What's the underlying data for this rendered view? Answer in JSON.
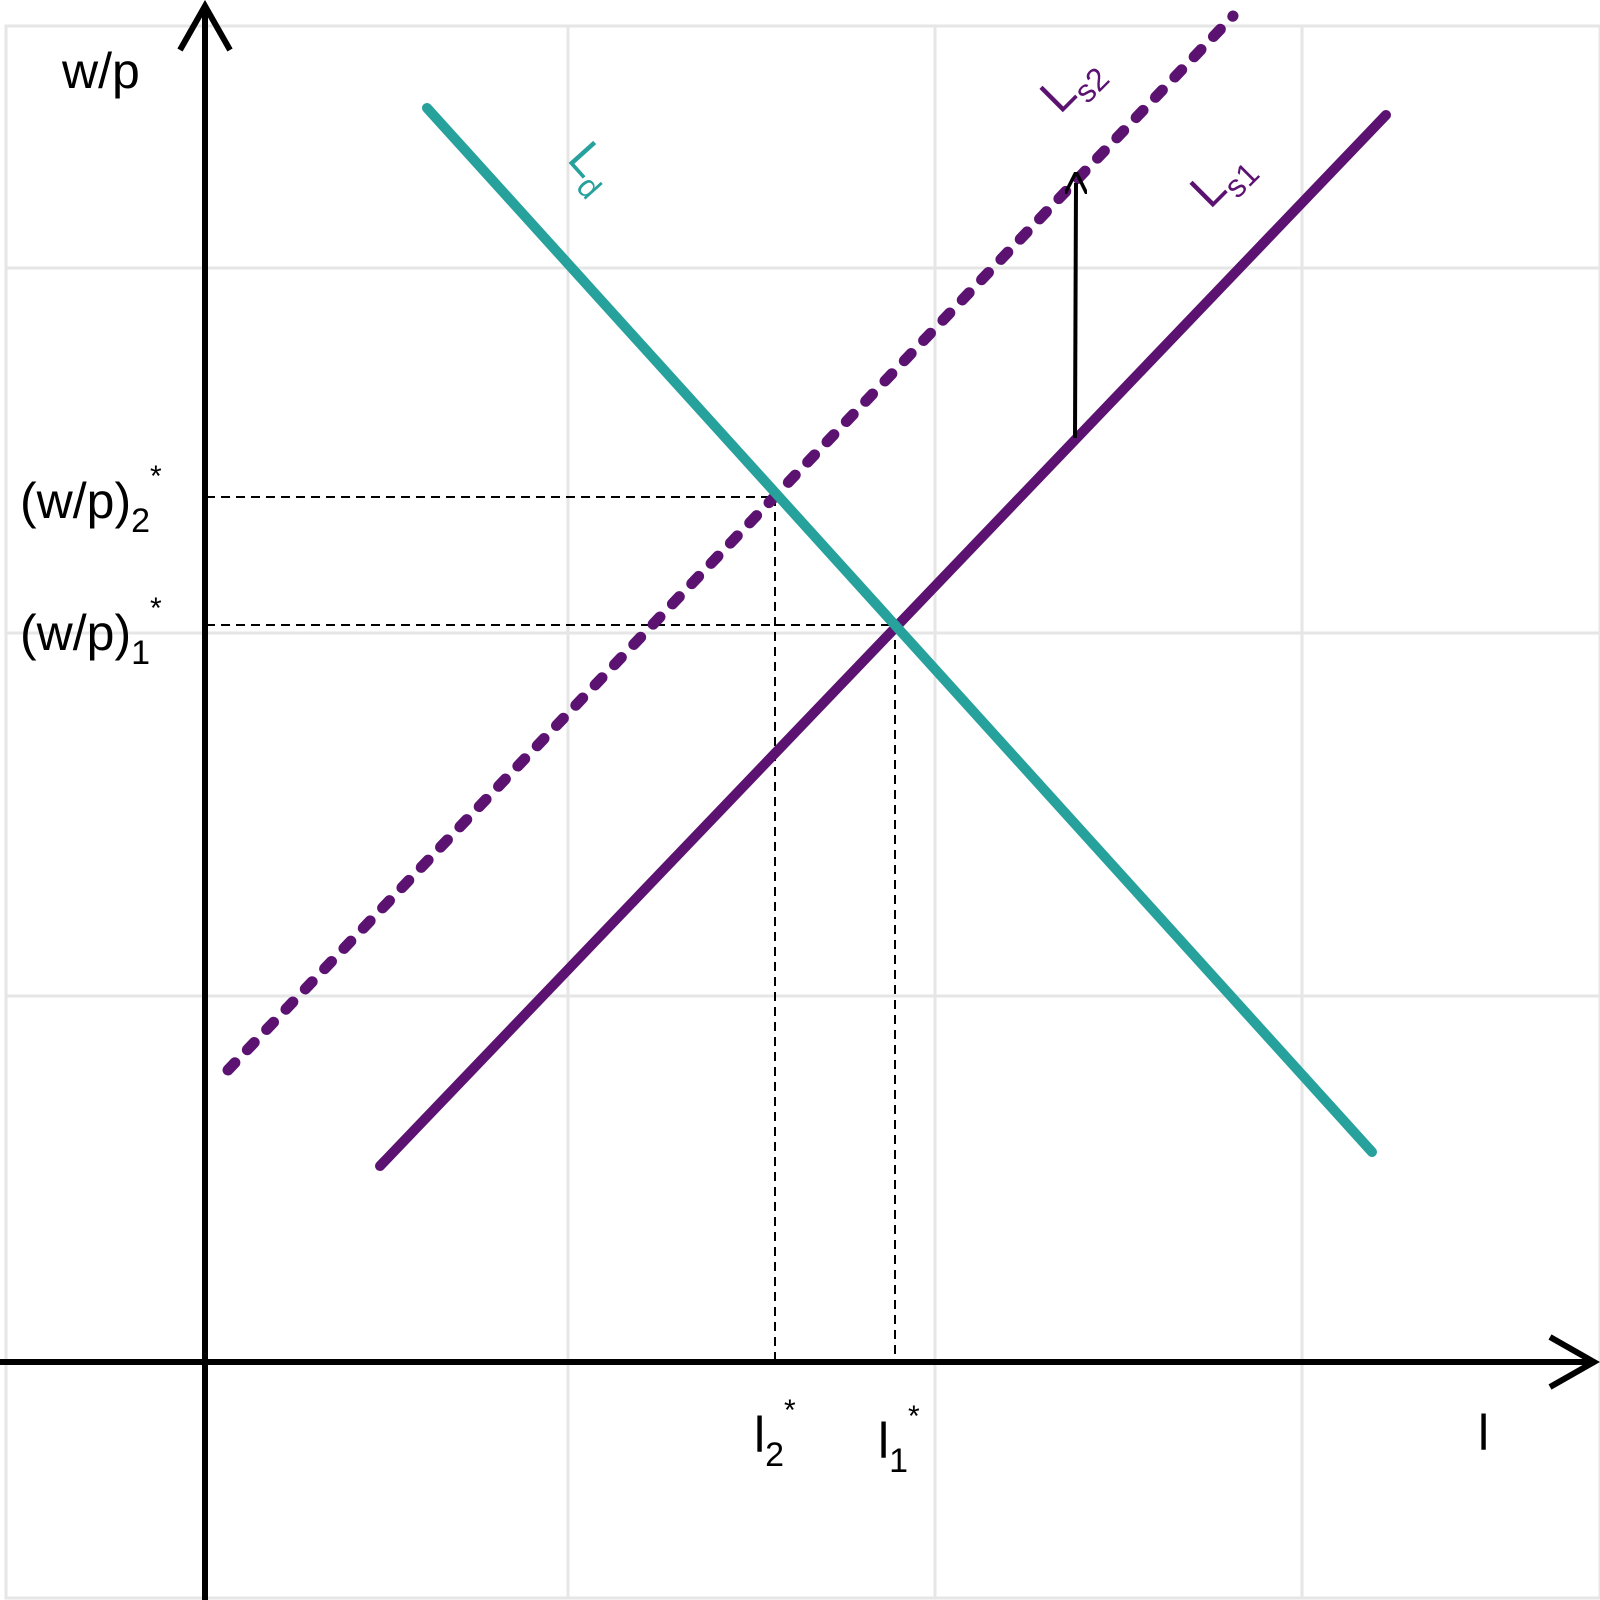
{
  "axes": {
    "y_label": "w/p",
    "x_label": "l"
  },
  "curves": {
    "labour_demand": {
      "label": "L",
      "subscript": "d",
      "color": "#26a19c",
      "style": "solid"
    },
    "labour_supply_1": {
      "label": "L",
      "subscript": "s1",
      "color": "#5b1270",
      "style": "solid"
    },
    "labour_supply_2": {
      "label": "L",
      "subscript": "s2",
      "color": "#5b1270",
      "style": "dotted"
    }
  },
  "equilibria": {
    "first": {
      "wage_label": "(w/p)",
      "wage_subscript": "1",
      "employment_label": "l",
      "employment_subscript": "1",
      "star": "*"
    },
    "second": {
      "wage_label": "(w/p)",
      "wage_subscript": "2",
      "employment_label": "l",
      "employment_subscript": "2",
      "star": "*"
    }
  },
  "shift_arrow": {
    "direction": "up",
    "from": "labour_supply_1",
    "to": "labour_supply_2"
  },
  "colors": {
    "axis": "#000000",
    "grid": "#e6e6e6",
    "demand": "#26a19c",
    "supply": "#5b1270"
  }
}
